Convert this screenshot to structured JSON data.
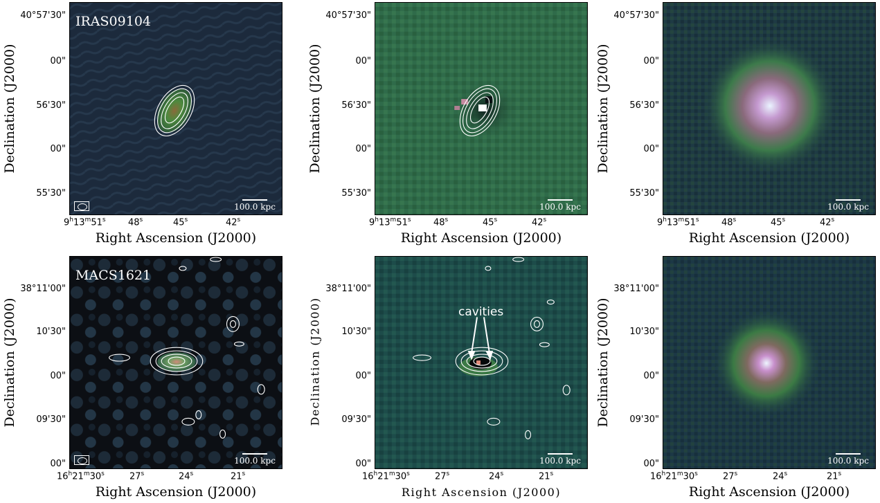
{
  "axes": {
    "xlabel": "Right Ascension (J2000)",
    "ylabel": "Declination (J2000)"
  },
  "row1": {
    "source": "IRAS09104",
    "yticks": [
      "40°57'30\"",
      "00\"",
      "56'30\"",
      "00\"",
      "55'30\""
    ],
    "xticks": {
      "first_h": "9",
      "first_m": "13",
      "first_s": "51",
      "rest": [
        "48",
        "45",
        "42"
      ]
    },
    "scalebar": "100.0 kpc"
  },
  "row2": {
    "source": "MACS1621",
    "yticks": [
      "38°11'00\"",
      "10'30\"",
      "00\"",
      "09'30\"",
      "00\""
    ],
    "xticks": {
      "first_h": "16",
      "first_m": "21",
      "first_s": "30",
      "rest": [
        "27",
        "24",
        "21"
      ]
    },
    "scalebar": "100.0 kpc",
    "annotation": "cavities"
  },
  "colors": {
    "radio_bg": "#1c2a3c",
    "residual_bg": "#2f6b4a",
    "xray_bg": "#1e3a44",
    "contour": "#ffffff"
  }
}
